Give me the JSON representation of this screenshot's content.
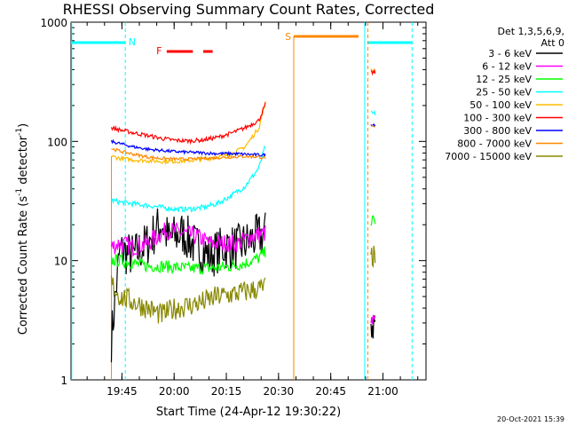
{
  "chart_data": {
    "type": "line",
    "title": "RHESSI Observing Summary Count Rates, Corrected",
    "xlabel": "Start Time (24-Apr-12 19:30:22)",
    "ylabel": "Corrected Count Rate (s⁻¹ detector⁻¹)",
    "yscale": "log",
    "ylim": [
      1,
      1000
    ],
    "xlim_minutes_after_19_30_22": [
      0,
      102
    ],
    "x_ticks": [
      "19:45",
      "20:00",
      "20:15",
      "20:30",
      "20:45",
      "21:00"
    ],
    "y_ticks": [
      "1",
      "10",
      "100",
      "1000"
    ],
    "timestamp": "20-Oct-2021 15:39",
    "legend_header": [
      "Det 1,3,5,6,9,",
      "Att 0"
    ],
    "series": [
      {
        "name": "3 - 6 keV",
        "color": "#000000",
        "t": [
          11.6,
          14,
          18,
          22,
          26,
          28,
          32,
          36,
          40,
          44,
          48,
          52,
          56
        ],
        "y": [
          2.2,
          12,
          11,
          14,
          21,
          15,
          17,
          13,
          11,
          13,
          13,
          15,
          17
        ]
      },
      {
        "name": "6 - 12 keV",
        "color": "#ff00ff",
        "t": [
          11.6,
          14,
          18,
          22,
          26,
          28,
          32,
          36,
          40,
          44,
          48,
          52,
          56
        ],
        "y": [
          13,
          14,
          13,
          14,
          17,
          18,
          17,
          16,
          14,
          14,
          14,
          16,
          17
        ]
      },
      {
        "name": "12 - 25 keV",
        "color": "#00ff00",
        "t": [
          11.6,
          14,
          18,
          22,
          26,
          30,
          34,
          38,
          42,
          46,
          50,
          54,
          56
        ],
        "y": [
          10,
          10,
          9.5,
          9,
          9,
          8.8,
          8.6,
          8.6,
          8.7,
          9,
          9.5,
          10.5,
          12
        ]
      },
      {
        "name": "25 - 50 keV",
        "color": "#00ffff",
        "t": [
          11.6,
          14,
          18,
          22,
          26,
          30,
          34,
          38,
          42,
          46,
          50,
          54,
          56
        ],
        "y": [
          32,
          31,
          30,
          29,
          28,
          27,
          27,
          28,
          30,
          35,
          42,
          60,
          95
        ]
      },
      {
        "name": "50 - 100 keV",
        "color": "#ffbb00",
        "t": [
          11.6,
          14,
          18,
          22,
          26,
          30,
          34,
          38,
          42,
          46,
          50,
          54,
          56
        ],
        "y": [
          75,
          72,
          70,
          69,
          68,
          68,
          69,
          71,
          74,
          78,
          90,
          130,
          220
        ]
      },
      {
        "name": "100 - 300 keV",
        "color": "#ff0000",
        "t": [
          11.6,
          14,
          18,
          22,
          26,
          30,
          34,
          38,
          42,
          46,
          50,
          54,
          56
        ],
        "y": [
          130,
          125,
          118,
          112,
          106,
          102,
          101,
          103,
          108,
          117,
          130,
          150,
          210
        ]
      },
      {
        "name": "300 - 800 keV",
        "color": "#0000ff",
        "t": [
          11.6,
          14,
          18,
          22,
          26,
          30,
          34,
          38,
          42,
          46,
          50,
          54,
          56
        ],
        "y": [
          100,
          96,
          90,
          86,
          84,
          82,
          81,
          80,
          79,
          79,
          78,
          77,
          77
        ]
      },
      {
        "name": "800 - 7000 keV",
        "color": "#ff8800",
        "t": [
          11.6,
          14,
          18,
          22,
          26,
          30,
          34,
          38,
          42,
          46,
          50,
          54,
          56
        ],
        "y": [
          87,
          83,
          78,
          74,
          72,
          71,
          71,
          72,
          73,
          74,
          75,
          74,
          73
        ]
      },
      {
        "name": "7000 - 15000 keV",
        "color": "#888800",
        "t": [
          11.6,
          14,
          18,
          22,
          26,
          30,
          34,
          38,
          42,
          46,
          50,
          54,
          56
        ],
        "y": [
          6.5,
          5,
          4.5,
          4,
          3.5,
          4,
          4.2,
          4.5,
          5,
          5.2,
          5.5,
          5.8,
          6
        ]
      }
    ],
    "markers": [
      {
        "label": "N",
        "color": "#00ffff"
      },
      {
        "label": "F",
        "color": "#ff0000"
      },
      {
        "label": "S",
        "color": "#ff8800"
      }
    ]
  }
}
